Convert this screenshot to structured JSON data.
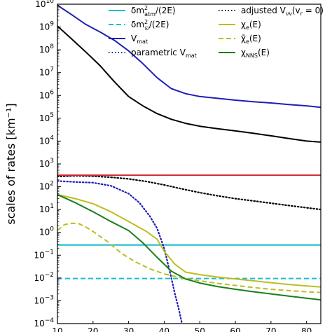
{
  "chart_data": {
    "type": "line",
    "title": "",
    "xlabel": "",
    "ylabel": "scales of rates [km⁻¹]",
    "y_scale": "log",
    "xlim": [
      10,
      84
    ],
    "ylim": [
      0.0001,
      10000000000
    ],
    "x_tick_labels": [
      "10",
      "20",
      "30",
      "40",
      "50",
      "60",
      "70",
      "80"
    ],
    "x_tick_values": [
      10,
      20,
      30,
      40,
      50,
      60,
      70,
      80
    ],
    "y_tick_exponents": [
      -4,
      -3,
      -2,
      -1,
      0,
      1,
      2,
      3,
      4,
      5,
      6,
      7,
      8,
      9,
      10
    ],
    "y_tick_base": "10",
    "grid": false,
    "legend_placement": "top",
    "series": [
      {
        "name": "δm²atm/(2E)",
        "color": "#17becf",
        "dash": "solid",
        "x": [
          10,
          84
        ],
        "y": [
          0.28,
          0.28
        ]
      },
      {
        "name": "δm²⊙/(2E)",
        "color": "#17becf",
        "dash": "dashed",
        "x": [
          10,
          84
        ],
        "y": [
          0.0095,
          0.0095
        ]
      },
      {
        "name": "Vmat",
        "color": "#1f1fb4",
        "dash": "solid",
        "x": [
          10,
          14,
          18,
          22,
          26,
          30,
          34,
          38,
          42,
          46,
          50,
          55,
          60,
          65,
          70,
          75,
          80,
          84
        ],
        "y": [
          9000000000,
          3500000000,
          1300000000,
          600000000,
          260000000,
          90000000,
          25000000,
          6000000,
          2000000,
          1200000,
          900000,
          750000,
          620000,
          530000,
          470000,
          400000,
          350000,
          300000
        ]
      },
      {
        "name": "parametric Vmat",
        "color": "#1f1fb4",
        "dash": "dotted",
        "x": [
          10,
          15,
          20,
          25,
          30,
          33,
          36,
          38,
          40,
          42,
          43,
          44,
          45
        ],
        "y": [
          180,
          160,
          150,
          110,
          50,
          20,
          5,
          1.5,
          0.2,
          0.01,
          0.002,
          0.0005,
          0.0001
        ]
      },
      {
        "name": "adjusted Vνν(vr = 0)",
        "color": "#000000",
        "dash": "dotted",
        "x": [
          10,
          15,
          20,
          25,
          30,
          35,
          40,
          45,
          50,
          55,
          60,
          65,
          70,
          75,
          80,
          84
        ],
        "y": [
          280,
          300,
          290,
          260,
          220,
          170,
          120,
          80,
          55,
          40,
          30,
          24,
          19,
          15,
          12,
          10
        ]
      },
      {
        "name": "χe(E)",
        "color": "#bcbd22",
        "dash": "solid",
        "x": [
          10,
          15,
          20,
          25,
          30,
          35,
          38,
          40,
          43,
          46,
          50,
          55,
          60,
          65,
          70,
          75,
          80,
          84
        ],
        "y": [
          45,
          30,
          18,
          8,
          3,
          1.1,
          0.5,
          0.15,
          0.04,
          0.018,
          0.014,
          0.011,
          0.009,
          0.0075,
          0.0062,
          0.0052,
          0.0045,
          0.004
        ]
      },
      {
        "name": "χ̄e(E)",
        "color": "#bcbd22",
        "dash": "dashed",
        "x": [
          10,
          12,
          14,
          16,
          18,
          20,
          24,
          28,
          32,
          36,
          40,
          45,
          50,
          55,
          60,
          65,
          70,
          75,
          80,
          84
        ],
        "y": [
          1.2,
          2.2,
          2.5,
          2.4,
          1.7,
          1.1,
          0.4,
          0.12,
          0.05,
          0.025,
          0.015,
          0.01,
          0.0075,
          0.0058,
          0.0047,
          0.0038,
          0.0032,
          0.0028,
          0.0025,
          0.0023
        ]
      },
      {
        "name": "χNNS(E)",
        "color": "#1a7f1a",
        "dash": "solid",
        "x": [
          10,
          15,
          20,
          25,
          30,
          34,
          38,
          42,
          46,
          50,
          55,
          60,
          65,
          70,
          75,
          80,
          84
        ],
        "y": [
          45,
          20,
          8,
          3,
          1.2,
          0.35,
          0.08,
          0.02,
          0.009,
          0.006,
          0.0042,
          0.0032,
          0.0025,
          0.002,
          0.0016,
          0.0013,
          0.0011
        ]
      },
      {
        "name": "",
        "color": "#000000",
        "dash": "solid",
        "x": [
          10,
          14,
          18,
          22,
          26,
          30,
          34,
          38,
          42,
          46,
          50,
          55,
          60,
          65,
          70,
          75,
          80,
          84
        ],
        "y": [
          1100000000,
          300000000,
          80000000,
          20000000,
          4000000,
          900000,
          350000,
          160000,
          90000,
          60000,
          45000,
          35000,
          28000,
          22000,
          17000,
          13000,
          10000,
          9000
        ]
      },
      {
        "name": "",
        "color": "#d62728",
        "dash": "solid",
        "x": [
          10,
          84
        ],
        "y": [
          320,
          320
        ]
      }
    ],
    "legend": {
      "left": [
        {
          "color": "#17becf",
          "dash": "solid",
          "main": "δm",
          "sup": "2",
          "sub": "atm",
          "rest": "/(2E)"
        },
        {
          "color": "#17becf",
          "dash": "dashed",
          "main": "δm",
          "sup": "2",
          "sub": "⊙",
          "rest": "/(2E)"
        },
        {
          "color": "#1f1fb4",
          "dash": "solid",
          "main": "V",
          "sup": "",
          "sub": "mat",
          "rest": ""
        },
        {
          "color": "#1f1fb4",
          "dash": "dotted",
          "main": "parametric V",
          "sup": "",
          "sub": "mat",
          "rest": ""
        }
      ],
      "right": [
        {
          "color": "#000000",
          "dash": "dotted",
          "main": "adjusted V",
          "sup": "",
          "sub": "νν",
          "rest": "(v",
          "sub2": "r",
          "rest2": " = 0)"
        },
        {
          "color": "#bcbd22",
          "dash": "solid",
          "main": "χ",
          "sup": "",
          "sub": "e",
          "rest": "(E)"
        },
        {
          "color": "#bcbd22",
          "dash": "dashed",
          "main": "χ̄",
          "sup": "",
          "sub": "e",
          "rest": "(E)"
        },
        {
          "color": "#1a7f1a",
          "dash": "solid",
          "main": "χ",
          "sup": "",
          "sub": "NNS",
          "rest": "(E)"
        }
      ]
    }
  }
}
